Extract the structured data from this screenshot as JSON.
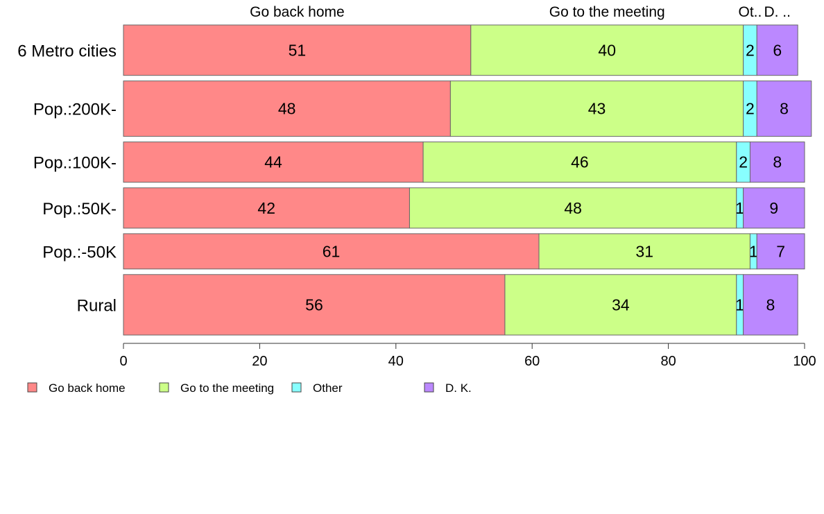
{
  "chart_data": {
    "type": "bar",
    "orientation": "horizontal",
    "stacked": true,
    "categories": [
      "6 Metro cities",
      "Pop.:200K-",
      "Pop.:100K-",
      "Pop.:50K-",
      "Pop.:-50K",
      "Rural"
    ],
    "series": [
      {
        "name": "Go back home",
        "color": "#ff8888",
        "values": [
          51,
          48,
          44,
          42,
          61,
          56
        ],
        "value_labels": [
          "51",
          "48",
          "44",
          "42",
          "61",
          "56"
        ]
      },
      {
        "name": "Go to the meeting",
        "color": "#ccff88",
        "values": [
          40,
          43,
          46,
          48,
          31,
          34
        ],
        "value_labels": [
          "40",
          "43",
          "46",
          "48",
          "31",
          "34"
        ]
      },
      {
        "name": "Other",
        "color": "#88ffff",
        "values": [
          2,
          2,
          2,
          1,
          1,
          1
        ],
        "value_labels": [
          "2",
          "2",
          "2",
          "1",
          "1",
          "1"
        ]
      },
      {
        "name": "D. K.",
        "color": "#bb88ff",
        "values": [
          6,
          8,
          8,
          9,
          7,
          8
        ],
        "value_labels": [
          "6",
          "8",
          "8",
          "9",
          "7",
          "8"
        ]
      }
    ],
    "top_labels": [
      "Go back home",
      "Go to the meeting",
      "Ot..",
      "D. .."
    ],
    "relative_widths": [
      1.0,
      1.1,
      0.8,
      0.8,
      0.7,
      1.2
    ],
    "x_ticks": [
      "0",
      "20",
      "40",
      "60",
      "80",
      "100"
    ],
    "xlim": [
      0,
      100
    ],
    "grid": false,
    "legend_position": "bottom-left",
    "legend": [
      {
        "name": "Go back home",
        "color": "#ff8888"
      },
      {
        "name": "Go to the meeting",
        "color": "#ccff88"
      },
      {
        "name": "Other",
        "color": "#88ffff"
      },
      {
        "name": "D. K.",
        "color": "#bb88ff"
      }
    ]
  }
}
